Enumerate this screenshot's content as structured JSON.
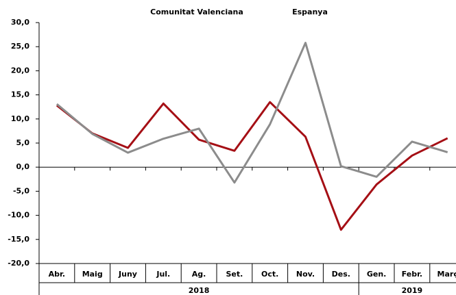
{
  "chart_data": {
    "type": "line",
    "categories": [
      "Abr.",
      "Maig",
      "Juny",
      "Jul.",
      "Ag.",
      "Set.",
      "Oct.",
      "Nov.",
      "Des.",
      "Gen.",
      "Febr.",
      "Març"
    ],
    "groups": [
      {
        "label": "2018",
        "start": 0,
        "end": 8
      },
      {
        "label": "2019",
        "start": 9,
        "end": 11
      }
    ],
    "series": [
      {
        "name": "Comunitat Valenciana",
        "color": "#a50f15",
        "values": [
          12.8,
          7.0,
          4.0,
          13.2,
          5.7,
          3.4,
          13.5,
          6.3,
          -13.0,
          -3.6,
          2.4,
          6.0
        ]
      },
      {
        "name": "Espanya",
        "color": "#8c8c8c",
        "values": [
          13.1,
          6.9,
          3.0,
          5.9,
          8.0,
          -3.2,
          8.9,
          25.8,
          0.2,
          -2.0,
          5.3,
          3.1
        ]
      }
    ],
    "ylim": [
      -20,
      30
    ],
    "yticks": [
      {
        "value": -20,
        "label": "-20,0"
      },
      {
        "value": -15,
        "label": "-15,0"
      },
      {
        "value": -10,
        "label": "-10,0"
      },
      {
        "value": -5,
        "label": "-5,0"
      },
      {
        "value": 0,
        "label": "0,0"
      },
      {
        "value": 5,
        "label": "5,0"
      },
      {
        "value": 10,
        "label": "10,0"
      },
      {
        "value": 15,
        "label": "15,0"
      },
      {
        "value": 20,
        "label": "20,0"
      },
      {
        "value": 25,
        "label": "25,0"
      },
      {
        "value": 30,
        "label": "30,0"
      }
    ]
  }
}
